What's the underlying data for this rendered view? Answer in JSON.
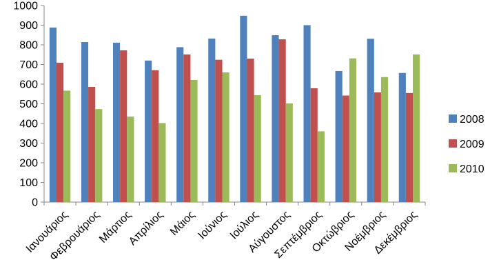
{
  "chart_data": {
    "type": "bar",
    "categories": [
      "Ιανουάριος",
      "Φεβρουάριος",
      "Μάρτιος",
      "Απρίλιος",
      "Μάιος",
      "Ιούνιος",
      "Ιούλιος",
      "Αύγουστος",
      "Σεπτέμβριος",
      "Οκτώβριος",
      "Νοέμβριος",
      "Δεκέμβριος"
    ],
    "series": [
      {
        "name": "2008",
        "color": "#4F81BD",
        "values": [
          888,
          814,
          811,
          720,
          788,
          832,
          948,
          849,
          900,
          667,
          831,
          657
        ]
      },
      {
        "name": "2009",
        "color": "#C0504D",
        "values": [
          709,
          586,
          772,
          671,
          751,
          724,
          730,
          828,
          579,
          542,
          558,
          555
        ]
      },
      {
        "name": "2010",
        "color": "#9BBB59",
        "values": [
          567,
          473,
          435,
          402,
          621,
          660,
          544,
          502,
          360,
          731,
          636,
          751
        ]
      }
    ],
    "ylim": [
      0,
      1000
    ],
    "yticks": [
      "0",
      "100",
      "200",
      "300",
      "400",
      "500",
      "600",
      "700",
      "800",
      "900",
      "1000"
    ],
    "title": "",
    "xlabel": "",
    "ylabel": "",
    "grid": false,
    "legend_position": "right"
  }
}
